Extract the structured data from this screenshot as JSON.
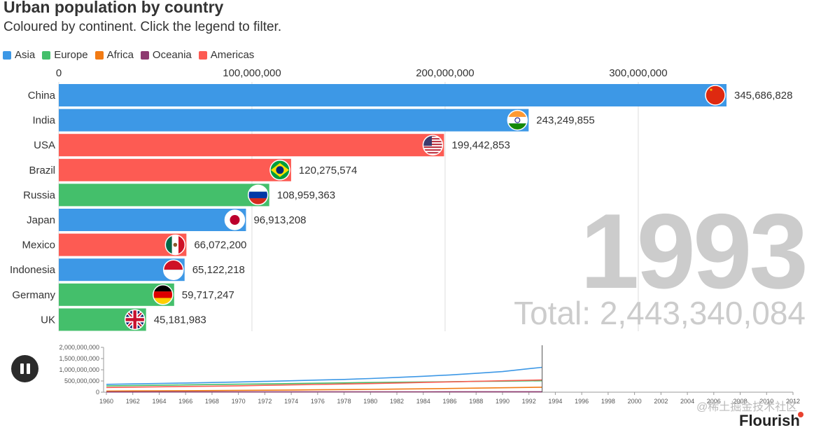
{
  "header": {
    "title": "Urban population by country",
    "subtitle": "Coloured by continent. Click the legend to filter."
  },
  "legend": [
    {
      "label": "Asia",
      "color": "#3d98e6"
    },
    {
      "label": "Europe",
      "color": "#44bf6b"
    },
    {
      "label": "Africa",
      "color": "#f27b14"
    },
    {
      "label": "Oceania",
      "color": "#8e3a70"
    },
    {
      "label": "Americas",
      "color": "#fd5b53"
    }
  ],
  "display": {
    "year": "1993",
    "total": "Total: 2,443,340,084"
  },
  "footer": {
    "watermark": "@稀土掘金技术社区",
    "brand": "Flourish"
  },
  "chart_data": [
    {
      "type": "bar",
      "orientation": "horizontal",
      "categories": [
        "China",
        "India",
        "USA",
        "Brazil",
        "Russia",
        "Japan",
        "Mexico",
        "Indonesia",
        "Germany",
        "UK"
      ],
      "values": [
        345686828,
        243249855,
        199442853,
        120275574,
        108959363,
        96913208,
        66072200,
        65122218,
        59717247,
        45181983
      ],
      "value_labels": [
        "345,686,828",
        "243,249,855",
        "199,442,853",
        "120,275,574",
        "108,959,363",
        "96,913,208",
        "66,072,200",
        "65,122,218",
        "59,717,247",
        "45,181,983"
      ],
      "continents": [
        "Asia",
        "Asia",
        "Americas",
        "Americas",
        "Europe",
        "Asia",
        "Americas",
        "Asia",
        "Europe",
        "Europe"
      ],
      "flags": [
        "china-flag-icon",
        "india-flag-icon",
        "usa-flag-icon",
        "brazil-flag-icon",
        "russia-flag-icon",
        "japan-flag-icon",
        "mexico-flag-icon",
        "indonesia-flag-icon",
        "germany-flag-icon",
        "uk-flag-icon"
      ],
      "xlim": [
        0,
        345686828
      ],
      "x_ticks": [
        0,
        100000000,
        200000000,
        300000000
      ],
      "x_tick_labels": [
        "0",
        "100,000,000",
        "200,000,000",
        "300,000,000"
      ],
      "grid": true
    },
    {
      "type": "line",
      "x": [
        1960,
        1962,
        1964,
        1966,
        1968,
        1970,
        1972,
        1974,
        1976,
        1978,
        1980,
        1982,
        1984,
        1986,
        1988,
        1990,
        1992,
        1993
      ],
      "x_ticks": [
        1960,
        1962,
        1964,
        1966,
        1968,
        1970,
        1972,
        1974,
        1976,
        1978,
        1980,
        1982,
        1984,
        1986,
        1988,
        1990,
        1992,
        1994,
        1996,
        1998,
        2000,
        2002,
        2004,
        2006,
        2008,
        2010,
        2012
      ],
      "x_tick_labels": [
        "1960",
        "1962",
        "1964",
        "1966",
        "1968",
        "1970",
        "1972",
        "1974",
        "1976",
        "1978",
        "1980",
        "1982",
        "1984",
        "1986",
        "1988",
        "1990",
        "1992",
        "1994",
        "1996",
        "1998",
        "2000",
        "2002",
        "2004",
        "2006",
        "2008",
        "2010",
        "2012"
      ],
      "xlim": [
        1960,
        2012
      ],
      "ylim": [
        0,
        2000000000
      ],
      "y_ticks": [
        0,
        500000000,
        1000000000,
        1500000000,
        2000000000
      ],
      "y_tick_labels": [
        "0",
        "500,000,000",
        "1,000,000,000",
        "1,500,000,000",
        "2,000,000,000"
      ],
      "series": [
        {
          "name": "Asia",
          "color": "#3d98e6",
          "values": [
            350000000,
            370000000,
            390000000,
            410000000,
            430000000,
            455000000,
            480000000,
            510000000,
            540000000,
            570000000,
            610000000,
            660000000,
            710000000,
            770000000,
            840000000,
            920000000,
            1050000000,
            1110000000
          ]
        },
        {
          "name": "Europe",
          "color": "#44bf6b",
          "values": [
            280000000,
            295000000,
            310000000,
            325000000,
            340000000,
            355000000,
            370000000,
            385000000,
            400000000,
            415000000,
            430000000,
            443000000,
            455000000,
            467000000,
            480000000,
            492000000,
            505000000,
            510000000
          ]
        },
        {
          "name": "Africa",
          "color": "#f27b14",
          "values": [
            50000000,
            55000000,
            60000000,
            66000000,
            72000000,
            80000000,
            88000000,
            96000000,
            105000000,
            115000000,
            126000000,
            138000000,
            150000000,
            165000000,
            180000000,
            196000000,
            213000000,
            222000000
          ]
        },
        {
          "name": "Oceania",
          "color": "#8e3a70",
          "values": [
            10000000,
            10500000,
            11000000,
            11500000,
            12000000,
            12700000,
            13300000,
            14000000,
            14600000,
            15200000,
            15800000,
            16400000,
            17000000,
            17600000,
            18200000,
            18800000,
            19400000,
            19700000
          ]
        },
        {
          "name": "Americas",
          "color": "#fd5b53",
          "values": [
            210000000,
            225000000,
            240000000,
            255000000,
            270000000,
            285000000,
            305000000,
            325000000,
            345000000,
            365000000,
            385000000,
            410000000,
            435000000,
            460000000,
            485000000,
            510000000,
            535000000,
            548000000
          ]
        }
      ]
    }
  ]
}
